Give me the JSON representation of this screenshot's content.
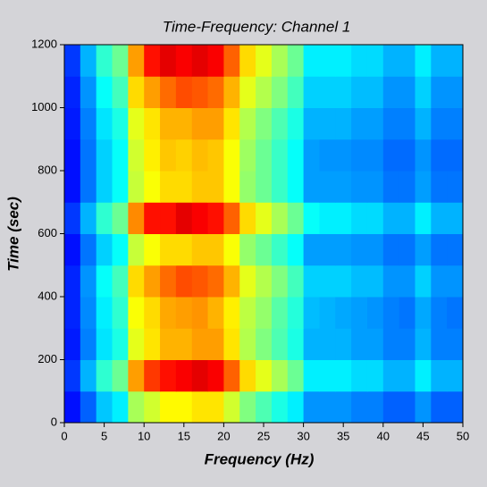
{
  "chart_data": {
    "type": "heatmap",
    "title": "Time-Frequency: Channel 1",
    "x_label": "Frequency (Hz)",
    "y_label": "Time (sec)",
    "x": [
      0,
      2,
      4,
      6,
      8,
      10,
      12,
      14,
      16,
      18,
      20,
      22,
      24,
      26,
      28,
      30,
      32,
      34,
      36,
      38,
      40,
      42,
      44,
      46,
      48,
      50
    ],
    "y": [
      0,
      100,
      200,
      300,
      400,
      500,
      600,
      700,
      800,
      900,
      1000,
      1100,
      1200
    ],
    "z": [
      [
        0.14,
        0.22,
        0.32,
        0.36,
        0.54,
        0.58,
        0.63,
        0.63,
        0.65,
        0.65,
        0.58,
        0.5,
        0.45,
        0.4,
        0.36,
        0.27,
        0.27,
        0.27,
        0.25,
        0.25,
        0.22,
        0.22,
        0.27,
        0.22,
        0.22
      ],
      [
        0.18,
        0.3,
        0.42,
        0.48,
        0.72,
        0.82,
        0.86,
        0.88,
        0.9,
        0.88,
        0.78,
        0.66,
        0.6,
        0.54,
        0.48,
        0.36,
        0.36,
        0.36,
        0.34,
        0.34,
        0.3,
        0.3,
        0.36,
        0.3,
        0.3
      ],
      [
        0.15,
        0.25,
        0.35,
        0.4,
        0.6,
        0.65,
        0.7,
        0.7,
        0.72,
        0.72,
        0.65,
        0.55,
        0.5,
        0.45,
        0.4,
        0.3,
        0.3,
        0.3,
        0.28,
        0.28,
        0.25,
        0.25,
        0.3,
        0.25,
        0.25
      ],
      [
        0.16,
        0.26,
        0.36,
        0.42,
        0.62,
        0.66,
        0.71,
        0.72,
        0.73,
        0.7,
        0.64,
        0.56,
        0.52,
        0.46,
        0.41,
        0.31,
        0.3,
        0.29,
        0.28,
        0.27,
        0.25,
        0.24,
        0.29,
        0.25,
        0.24
      ],
      [
        0.16,
        0.27,
        0.38,
        0.44,
        0.66,
        0.72,
        0.77,
        0.8,
        0.79,
        0.77,
        0.7,
        0.6,
        0.55,
        0.5,
        0.44,
        0.33,
        0.33,
        0.33,
        0.31,
        0.31,
        0.27,
        0.27,
        0.33,
        0.27,
        0.27
      ],
      [
        0.14,
        0.24,
        0.33,
        0.38,
        0.57,
        0.62,
        0.66,
        0.66,
        0.68,
        0.68,
        0.62,
        0.52,
        0.48,
        0.43,
        0.38,
        0.28,
        0.28,
        0.28,
        0.27,
        0.27,
        0.24,
        0.24,
        0.28,
        0.24,
        0.24
      ],
      [
        0.18,
        0.3,
        0.42,
        0.48,
        0.74,
        0.86,
        0.86,
        0.9,
        0.88,
        0.86,
        0.78,
        0.66,
        0.6,
        0.54,
        0.48,
        0.38,
        0.36,
        0.36,
        0.34,
        0.34,
        0.3,
        0.3,
        0.36,
        0.3,
        0.3
      ],
      [
        0.14,
        0.24,
        0.33,
        0.38,
        0.57,
        0.62,
        0.66,
        0.66,
        0.68,
        0.68,
        0.62,
        0.52,
        0.48,
        0.43,
        0.38,
        0.28,
        0.28,
        0.28,
        0.27,
        0.27,
        0.24,
        0.24,
        0.28,
        0.24,
        0.24
      ],
      [
        0.14,
        0.24,
        0.33,
        0.38,
        0.58,
        0.64,
        0.68,
        0.67,
        0.69,
        0.68,
        0.62,
        0.53,
        0.48,
        0.43,
        0.38,
        0.28,
        0.27,
        0.27,
        0.26,
        0.26,
        0.23,
        0.23,
        0.27,
        0.23,
        0.23
      ],
      [
        0.15,
        0.25,
        0.35,
        0.4,
        0.6,
        0.65,
        0.7,
        0.7,
        0.72,
        0.72,
        0.65,
        0.55,
        0.5,
        0.45,
        0.4,
        0.3,
        0.3,
        0.3,
        0.28,
        0.28,
        0.25,
        0.25,
        0.3,
        0.25,
        0.25
      ],
      [
        0.16,
        0.27,
        0.38,
        0.44,
        0.66,
        0.72,
        0.77,
        0.8,
        0.79,
        0.77,
        0.7,
        0.6,
        0.55,
        0.5,
        0.44,
        0.33,
        0.33,
        0.33,
        0.31,
        0.31,
        0.27,
        0.27,
        0.33,
        0.27,
        0.27
      ],
      [
        0.18,
        0.3,
        0.42,
        0.48,
        0.72,
        0.86,
        0.9,
        0.88,
        0.9,
        0.88,
        0.78,
        0.66,
        0.6,
        0.54,
        0.48,
        0.36,
        0.36,
        0.36,
        0.34,
        0.34,
        0.3,
        0.3,
        0.36,
        0.3,
        0.3
      ]
    ],
    "colormap": "jet",
    "xlim": [
      0,
      50
    ],
    "xticks": [
      0,
      5,
      10,
      15,
      20,
      25,
      30,
      35,
      40,
      45,
      50
    ],
    "ylim": [
      0,
      1200
    ],
    "yticks": [
      0,
      200,
      400,
      600,
      800,
      1000,
      1200
    ]
  }
}
